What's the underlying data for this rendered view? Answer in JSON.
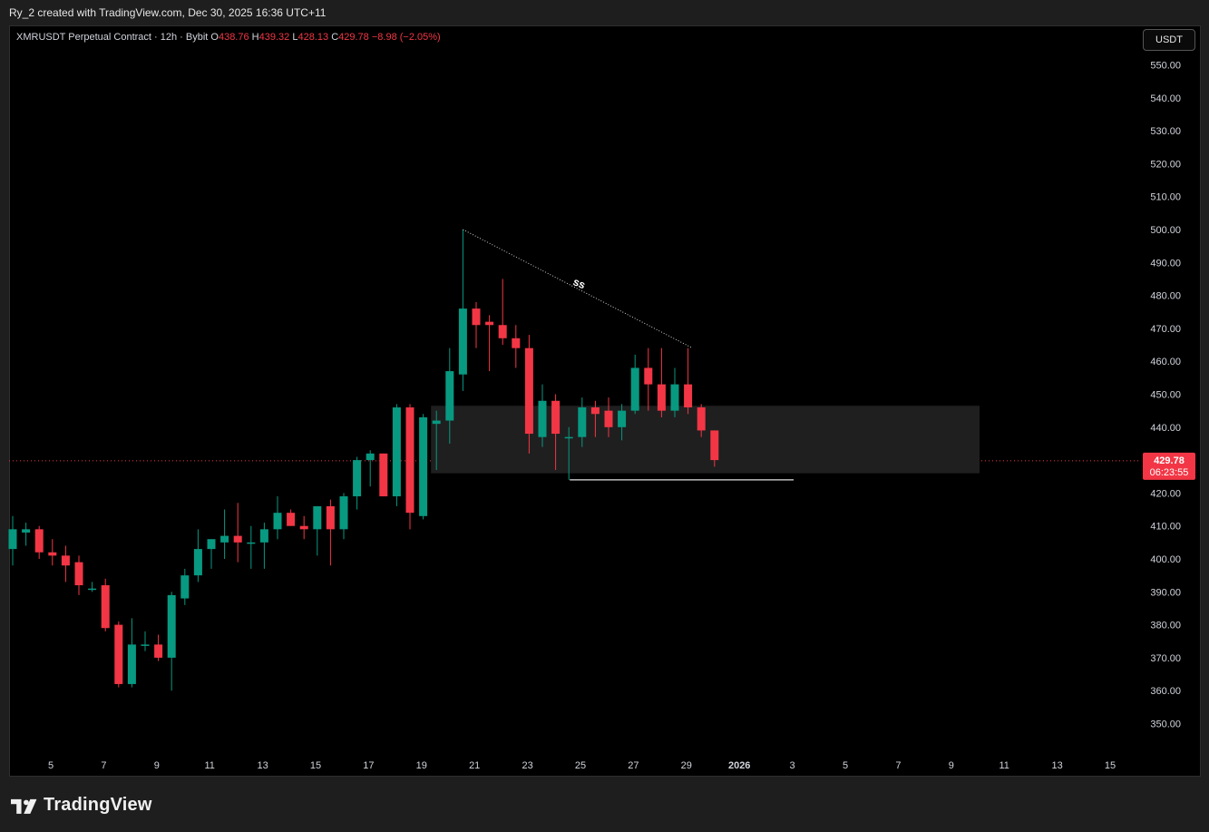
{
  "header": {
    "caption": "Ry_2 created with TradingView.com, Dec 30, 2025 16:36 UTC+11"
  },
  "legend": {
    "symbol": "XMRUSDT Perpetual Contract · 12h · Bybit",
    "open_label": "O",
    "open": "438.76",
    "high_label": "H",
    "high": "439.32",
    "low_label": "L",
    "low": "428.13",
    "close_label": "C",
    "close": "429.78",
    "change": "−8.98 (−2.05%)"
  },
  "currency_button": "USDT",
  "price_tag": {
    "price": "429.78",
    "countdown": "06:23:55"
  },
  "annotation_text": "ss",
  "brand": "TradingView",
  "colors": {
    "up": "#089981",
    "down": "#f23645",
    "background": "#000000",
    "zone": "#1f1f1f"
  },
  "chart_data": {
    "type": "candlestick",
    "ylim": [
      340,
      556
    ],
    "yticks": [
      "550.00",
      "540.00",
      "530.00",
      "520.00",
      "510.00",
      "500.00",
      "490.00",
      "480.00",
      "470.00",
      "460.00",
      "450.00",
      "440.00",
      "430.00",
      "420.00",
      "410.00",
      "400.00",
      "390.00",
      "380.00",
      "370.00",
      "360.00",
      "350.00"
    ],
    "xticks": [
      "5",
      "7",
      "9",
      "11",
      "13",
      "15",
      "17",
      "19",
      "21",
      "23",
      "25",
      "27",
      "29",
      "2026",
      "3",
      "5",
      "7",
      "9",
      "11",
      "13",
      "15"
    ],
    "candles": [
      {
        "o": 403,
        "h": 413,
        "l": 398,
        "c": 409
      },
      {
        "o": 408,
        "h": 411,
        "l": 404,
        "c": 409
      },
      {
        "o": 409,
        "h": 410,
        "l": 400,
        "c": 402
      },
      {
        "o": 402,
        "h": 406,
        "l": 398,
        "c": 401
      },
      {
        "o": 401,
        "h": 404,
        "l": 393,
        "c": 398
      },
      {
        "o": 399,
        "h": 401,
        "l": 389,
        "c": 392
      },
      {
        "o": 391,
        "h": 393,
        "l": 390,
        "c": 391
      },
      {
        "o": 392,
        "h": 394,
        "l": 378,
        "c": 379
      },
      {
        "o": 380,
        "h": 381,
        "l": 361,
        "c": 362
      },
      {
        "o": 362,
        "h": 382,
        "l": 361,
        "c": 374
      },
      {
        "o": 374,
        "h": 378,
        "l": 372,
        "c": 374
      },
      {
        "o": 374,
        "h": 377,
        "l": 369,
        "c": 370
      },
      {
        "o": 370,
        "h": 390,
        "l": 360,
        "c": 389
      },
      {
        "o": 388,
        "h": 397,
        "l": 386,
        "c": 395
      },
      {
        "o": 395,
        "h": 409,
        "l": 393,
        "c": 403
      },
      {
        "o": 403,
        "h": 406,
        "l": 397,
        "c": 406
      },
      {
        "o": 405,
        "h": 415,
        "l": 400,
        "c": 407
      },
      {
        "o": 407,
        "h": 417,
        "l": 399,
        "c": 405
      },
      {
        "o": 405,
        "h": 410,
        "l": 397,
        "c": 405
      },
      {
        "o": 405,
        "h": 411,
        "l": 397,
        "c": 409
      },
      {
        "o": 409,
        "h": 419,
        "l": 406,
        "c": 414
      },
      {
        "o": 414,
        "h": 415,
        "l": 410,
        "c": 410
      },
      {
        "o": 410,
        "h": 413,
        "l": 406,
        "c": 409
      },
      {
        "o": 409,
        "h": 416,
        "l": 401,
        "c": 416
      },
      {
        "o": 416,
        "h": 418,
        "l": 398,
        "c": 409
      },
      {
        "o": 409,
        "h": 420,
        "l": 406,
        "c": 419
      },
      {
        "o": 419,
        "h": 431,
        "l": 415,
        "c": 430
      },
      {
        "o": 430,
        "h": 433,
        "l": 422,
        "c": 432
      },
      {
        "o": 432,
        "h": 432,
        "l": 419,
        "c": 419
      },
      {
        "o": 419,
        "h": 447,
        "l": 416,
        "c": 446
      },
      {
        "o": 446,
        "h": 447,
        "l": 409,
        "c": 414
      },
      {
        "o": 413,
        "h": 444,
        "l": 412,
        "c": 443
      },
      {
        "o": 441,
        "h": 445,
        "l": 427,
        "c": 442
      },
      {
        "o": 442,
        "h": 464,
        "l": 435,
        "c": 457
      },
      {
        "o": 456,
        "h": 500,
        "l": 451,
        "c": 476
      },
      {
        "o": 476,
        "h": 478,
        "l": 464,
        "c": 471
      },
      {
        "o": 472,
        "h": 474,
        "l": 457,
        "c": 471
      },
      {
        "o": 471,
        "h": 485,
        "l": 465,
        "c": 467
      },
      {
        "o": 467,
        "h": 471,
        "l": 458,
        "c": 464
      },
      {
        "o": 464,
        "h": 468,
        "l": 432,
        "c": 438
      },
      {
        "o": 437,
        "h": 453,
        "l": 434,
        "c": 448
      },
      {
        "o": 448,
        "h": 450,
        "l": 427,
        "c": 438
      },
      {
        "o": 437,
        "h": 440,
        "l": 424,
        "c": 437
      },
      {
        "o": 437,
        "h": 449,
        "l": 434,
        "c": 446
      },
      {
        "o": 446,
        "h": 448,
        "l": 437,
        "c": 444
      },
      {
        "o": 445,
        "h": 449,
        "l": 437,
        "c": 440
      },
      {
        "o": 440,
        "h": 447,
        "l": 436,
        "c": 445
      },
      {
        "o": 445,
        "h": 462,
        "l": 444,
        "c": 458
      },
      {
        "o": 458,
        "h": 464,
        "l": 445,
        "c": 453
      },
      {
        "o": 453,
        "h": 464,
        "l": 443,
        "c": 445
      },
      {
        "o": 445,
        "h": 458,
        "l": 443,
        "c": 453
      },
      {
        "o": 453,
        "h": 464,
        "l": 444,
        "c": 446
      },
      {
        "o": 446,
        "h": 447,
        "l": 437,
        "c": 439
      },
      {
        "o": 439,
        "h": 439,
        "l": 428,
        "c": 430
      }
    ],
    "zone": {
      "top": 446.5,
      "bottom": 426
    },
    "trendline": [
      {
        "price": 500
      },
      {
        "price": 464
      }
    ],
    "support_line": {
      "price": 424
    },
    "current_price": 429.78
  }
}
